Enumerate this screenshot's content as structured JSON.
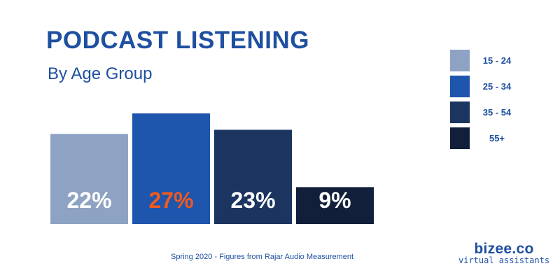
{
  "header": {
    "title": "PODCAST LISTENING",
    "subtitle": "By Age Group"
  },
  "chart_data": {
    "type": "bar",
    "title": "PODCAST LISTENING",
    "subtitle": "By Age Group",
    "categories": [
      "15 - 24",
      "25 - 34",
      "35 - 54",
      "55+"
    ],
    "values": [
      22,
      27,
      23,
      9
    ],
    "value_labels": [
      "22%",
      "27%",
      "23%",
      "9%"
    ],
    "colors": [
      "#8ea3c4",
      "#1e55ad",
      "#1b3460",
      "#111f3a"
    ],
    "label_colors": [
      "#ffffff",
      "#f05a1e",
      "#ffffff",
      "#ffffff"
    ],
    "unit": "%",
    "legend_position": "right",
    "grid": false,
    "ylim": [
      0,
      27
    ]
  },
  "legend": {
    "items": [
      {
        "label": "15 - 24",
        "color": "#8ea3c4"
      },
      {
        "label": "25 - 34",
        "color": "#1e55ad"
      },
      {
        "label": "35 - 54",
        "color": "#1b3460"
      },
      {
        "label": "55+",
        "color": "#111f3a"
      }
    ]
  },
  "footer": {
    "note": "Spring 2020 - Figures from Rajar Audio Measurement"
  },
  "brand": {
    "name": "bizee.co",
    "tagline": "virtual assistants"
  }
}
